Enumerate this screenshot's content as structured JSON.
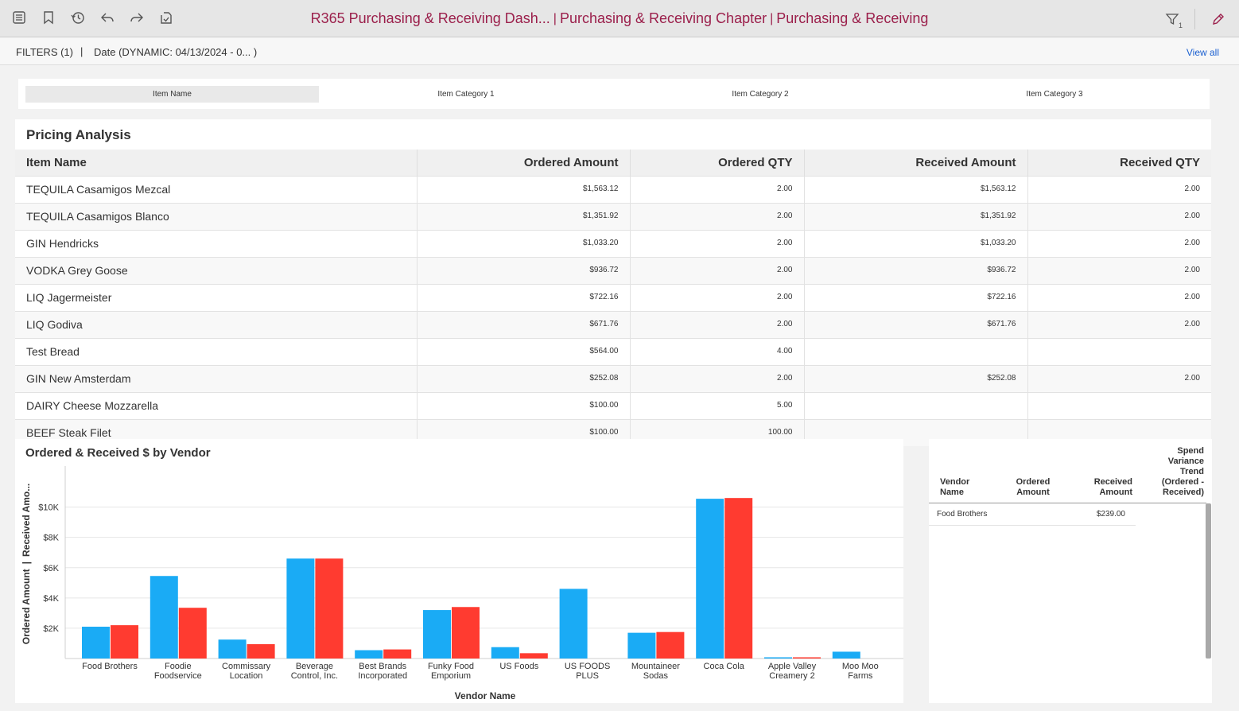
{
  "toolbar": {
    "left_icons": [
      "list-icon",
      "bookmark-icon",
      "history-icon",
      "undo-icon",
      "redo-icon",
      "export-icon"
    ],
    "right_icons": [
      "filter-icon",
      "edit-icon"
    ],
    "filter_badge": "1"
  },
  "breadcrumb": {
    "dashboard": "R365 Purchasing & Receiving Dash...",
    "chapter": "Purchasing & Receiving Chapter",
    "page": "Purchasing & Receiving",
    "separator": "|"
  },
  "filters": {
    "label": "FILTERS (1)",
    "separator": "|",
    "date_filter": "Date  (DYNAMIC: 04/13/2024 - 0... )",
    "view_all": "View all"
  },
  "tabs": [
    {
      "label": "Item Name",
      "active": true
    },
    {
      "label": "Item Category 1",
      "active": false
    },
    {
      "label": "Item Category 2",
      "active": false
    },
    {
      "label": "Item Category 3",
      "active": false
    }
  ],
  "pricing": {
    "title": "Pricing Analysis",
    "columns": [
      "Item Name",
      "Ordered Amount",
      "Ordered QTY",
      "Received Amount",
      "Received QTY"
    ],
    "rows": [
      [
        "TEQUILA Casamigos Mezcal",
        "$1,563.12",
        "2.00",
        "$1,563.12",
        "2.00"
      ],
      [
        "TEQUILA Casamigos Blanco",
        "$1,351.92",
        "2.00",
        "$1,351.92",
        "2.00"
      ],
      [
        "GIN Hendricks",
        "$1,033.20",
        "2.00",
        "$1,033.20",
        "2.00"
      ],
      [
        "VODKA Grey Goose",
        "$936.72",
        "2.00",
        "$936.72",
        "2.00"
      ],
      [
        "LIQ Jagermeister",
        "$722.16",
        "2.00",
        "$722.16",
        "2.00"
      ],
      [
        "LIQ Godiva",
        "$671.76",
        "2.00",
        "$671.76",
        "2.00"
      ],
      [
        "Test Bread",
        "$564.00",
        "4.00",
        "",
        ""
      ],
      [
        "GIN New Amsterdam",
        "$252.08",
        "2.00",
        "$252.08",
        "2.00"
      ],
      [
        "DAIRY Cheese Mozzarella",
        "$100.00",
        "5.00",
        "",
        ""
      ],
      [
        "BEEF Steak Filet",
        "$100.00",
        "100.00",
        "",
        ""
      ]
    ]
  },
  "chart_data": {
    "type": "bar",
    "title": "Ordered & Received $ by Vendor",
    "xlabel": "Vendor Name",
    "ylabel_parts": [
      "Ordered Amount",
      "|",
      "Received Amo..."
    ],
    "ylim": [
      0,
      12500
    ],
    "yticks": [
      2000,
      4000,
      6000,
      8000,
      10000
    ],
    "ytick_labels": [
      "$2K",
      "$4K",
      "$6K",
      "$8K",
      "$10K"
    ],
    "categories": [
      [
        "Food Brothers"
      ],
      [
        "Foodie",
        "Foodservice"
      ],
      [
        "Commissary",
        "Location"
      ],
      [
        "Beverage",
        "Control, Inc."
      ],
      [
        "Best Brands",
        "Incorporated"
      ],
      [
        "Funky Food",
        "Emporium"
      ],
      [
        "US Foods"
      ],
      [
        "US FOODS",
        "PLUS"
      ],
      [
        "Mountaineer",
        "Sodas"
      ],
      [
        "Coca Cola"
      ],
      [
        "Apple Valley",
        "Creamery 2"
      ],
      [
        "Moo Moo",
        "Farms"
      ]
    ],
    "series": [
      {
        "name": "Ordered Amount",
        "color": "#1aabf5",
        "values": [
          2100,
          5450,
          1250,
          6600,
          550,
          3200,
          750,
          4600,
          1700,
          10550,
          80,
          450
        ]
      },
      {
        "name": "Received Amount",
        "color": "#ff3b30",
        "values": [
          2200,
          3350,
          950,
          6600,
          600,
          3400,
          350,
          0,
          1750,
          10600,
          80,
          0
        ]
      }
    ]
  },
  "vendor_table": {
    "columns": [
      [
        "Vendor",
        "Name"
      ],
      [
        "Ordered",
        "Amount"
      ],
      [
        "Received",
        "Amount"
      ],
      [
        "Spend",
        "Variance",
        "Trend",
        "(Ordered -",
        "Received)"
      ]
    ],
    "rows": [
      {
        "vendor": "Food Brothers",
        "ordered": "",
        "received": "$239.00",
        "trend": ""
      }
    ]
  }
}
